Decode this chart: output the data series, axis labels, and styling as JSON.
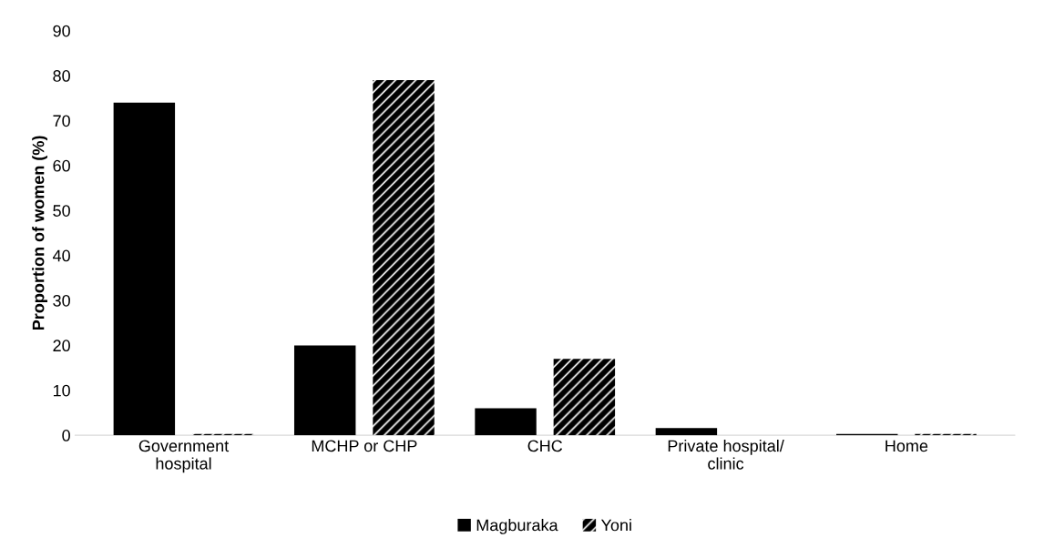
{
  "chart_data": {
    "type": "bar",
    "ylabel": "Proportion of women (%)",
    "categories": [
      "Government\nhospital",
      "MCHP or CHP",
      "CHC",
      "Private hospital/\nclinic",
      "Home"
    ],
    "series": [
      {
        "name": "Magburaka",
        "color": "#000000",
        "values": [
          74,
          20,
          6,
          1.6,
          0.3
        ]
      },
      {
        "name": "Yoni",
        "color": "#000000",
        "values": [
          0.3,
          79,
          17,
          0,
          0.3
        ]
      }
    ],
    "ylim": [
      0,
      90
    ],
    "yticks": [
      0,
      10,
      20,
      30,
      40,
      50,
      60,
      70,
      80,
      90
    ],
    "grid": false,
    "legend": "bottom"
  }
}
